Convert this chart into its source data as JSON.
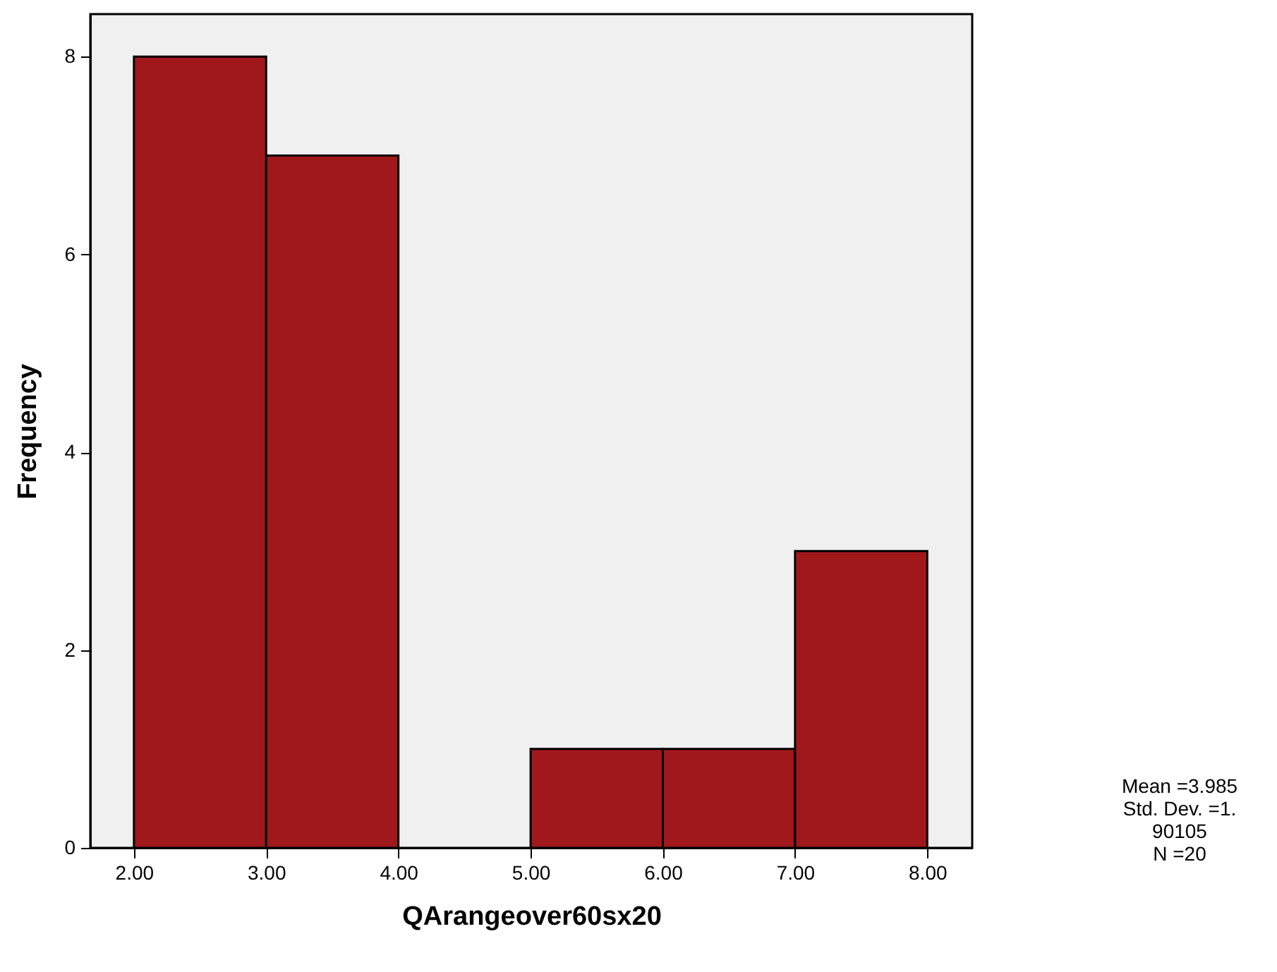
{
  "chart_data": {
    "type": "histogram",
    "xlabel": "QArangeover60sx20",
    "ylabel": "Frequency",
    "bins": [
      2,
      3,
      4,
      5,
      6,
      7,
      8
    ],
    "values": [
      8,
      7,
      0,
      1,
      1,
      3
    ],
    "color": "#a0181c",
    "xlim": [
      1.67,
      8.34
    ],
    "ylim": [
      0,
      8.43
    ],
    "xticks": [
      {
        "value": 2,
        "label": "2.00"
      },
      {
        "value": 3,
        "label": "3.00"
      },
      {
        "value": 4,
        "label": "4.00"
      },
      {
        "value": 5,
        "label": "5.00"
      },
      {
        "value": 6,
        "label": "6.00"
      },
      {
        "value": 7,
        "label": "7.00"
      },
      {
        "value": 8,
        "label": "8.00"
      }
    ],
    "yticks": [
      0,
      2,
      4,
      6,
      8
    ],
    "annotations": [
      "Mean =3.985",
      "Std. Dev. =1.",
      "90105",
      "N =20"
    ]
  }
}
